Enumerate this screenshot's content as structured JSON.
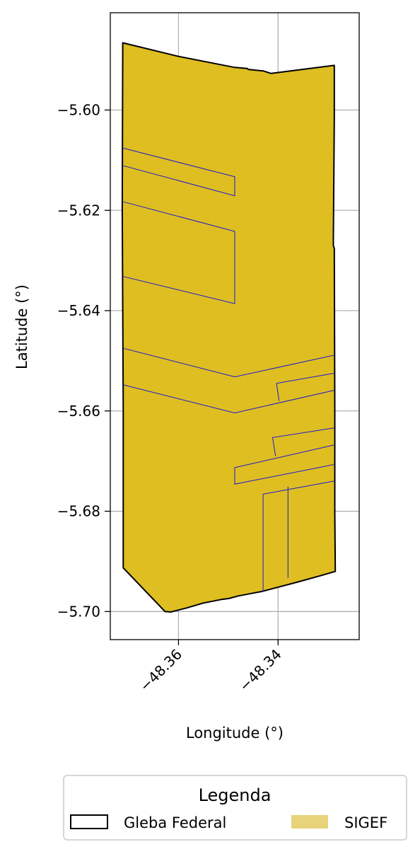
{
  "chart_data": {
    "type": "map",
    "xlabel": "Longitude (°)",
    "ylabel": "Latitude (°)",
    "xlim": [
      -48.3737,
      -48.3237
    ],
    "ylim": [
      -5.7056,
      -5.5806
    ],
    "x_ticks": [
      {
        "value": -48.36,
        "label": "−48.36"
      },
      {
        "value": -48.34,
        "label": "−48.34"
      }
    ],
    "y_ticks": [
      {
        "value": -5.6,
        "label": "−5.60"
      },
      {
        "value": -5.62,
        "label": "−5.62"
      },
      {
        "value": -5.64,
        "label": "−5.64"
      },
      {
        "value": -5.66,
        "label": "−5.66"
      },
      {
        "value": -5.68,
        "label": "−5.68"
      },
      {
        "value": -5.7,
        "label": "−5.70"
      }
    ],
    "grid": true,
    "gleba_outline": [
      [
        -48.3712,
        -5.5866
      ],
      [
        -48.36,
        -5.5893
      ],
      [
        -48.3487,
        -5.5915
      ],
      [
        -48.3462,
        -5.5917
      ],
      [
        -48.346,
        -5.5919
      ],
      [
        -48.343,
        -5.5922
      ],
      [
        -48.3414,
        -5.5927
      ],
      [
        -48.3287,
        -5.5911
      ],
      [
        -48.3287,
        -5.6015
      ],
      [
        -48.3289,
        -5.627
      ],
      [
        -48.3287,
        -5.6276
      ],
      [
        -48.3286,
        -5.66
      ],
      [
        -48.3286,
        -5.68
      ],
      [
        -48.3285,
        -5.692
      ],
      [
        -48.3313,
        -5.6928
      ],
      [
        -48.336,
        -5.6941
      ],
      [
        -48.3433,
        -5.696
      ],
      [
        -48.3454,
        -5.6964
      ],
      [
        -48.348,
        -5.6969
      ],
      [
        -48.3499,
        -5.6974
      ],
      [
        -48.3514,
        -5.6976
      ],
      [
        -48.355,
        -5.6983
      ],
      [
        -48.3584,
        -5.6993
      ],
      [
        -48.3612,
        -5.7
      ],
      [
        -48.3615,
        -5.7001
      ],
      [
        -48.3627,
        -5.7
      ],
      [
        -48.3711,
        -5.6913
      ],
      [
        -48.3711,
        -5.66
      ],
      [
        -48.3712,
        -5.64
      ],
      [
        -48.3713,
        -5.62
      ]
    ],
    "sigef_parcel_lines": [
      [
        [
          -48.3711,
          -5.6076
        ],
        [
          -48.3487,
          -5.6133
        ],
        [
          -48.3487,
          -5.6171
        ],
        [
          -48.3711,
          -5.6111
        ]
      ],
      [
        [
          -48.3711,
          -5.6183
        ],
        [
          -48.3487,
          -5.6242
        ],
        [
          -48.3487,
          -5.6386
        ],
        [
          -48.3711,
          -5.6332
        ]
      ],
      [
        [
          -48.3711,
          -5.6475
        ],
        [
          -48.3487,
          -5.6532
        ],
        [
          -48.3288,
          -5.6489
        ]
      ],
      [
        [
          -48.3711,
          -5.6548
        ],
        [
          -48.3487,
          -5.6604
        ],
        [
          -48.3288,
          -5.6559
        ]
      ],
      [
        [
          -48.3288,
          -5.6525
        ],
        [
          -48.3403,
          -5.6545
        ],
        [
          -48.3398,
          -5.658
        ]
      ],
      [
        [
          -48.3288,
          -5.6634
        ],
        [
          -48.3411,
          -5.6653
        ],
        [
          -48.3405,
          -5.669
        ]
      ],
      [
        [
          -48.3288,
          -5.6668
        ],
        [
          -48.3487,
          -5.6713
        ],
        [
          -48.3487,
          -5.6746
        ],
        [
          -48.3288,
          -5.6707
        ]
      ],
      [
        [
          -48.3288,
          -5.674
        ],
        [
          -48.343,
          -5.6766
        ],
        [
          -48.343,
          -5.696
        ]
      ],
      [
        [
          -48.338,
          -5.6751
        ],
        [
          -48.338,
          -5.6933
        ]
      ]
    ],
    "fill_color": "#dfbe22",
    "outline_color": "#000000",
    "parcel_line_color": "#1a1ad0",
    "legend": {
      "title": "Legenda",
      "position": "bottom-center",
      "entries": [
        {
          "label": "Gleba Federal",
          "style": "outline",
          "color": "#000000"
        },
        {
          "label": "SIGEF",
          "style": "fill",
          "color": "#e6d37a"
        }
      ]
    }
  }
}
